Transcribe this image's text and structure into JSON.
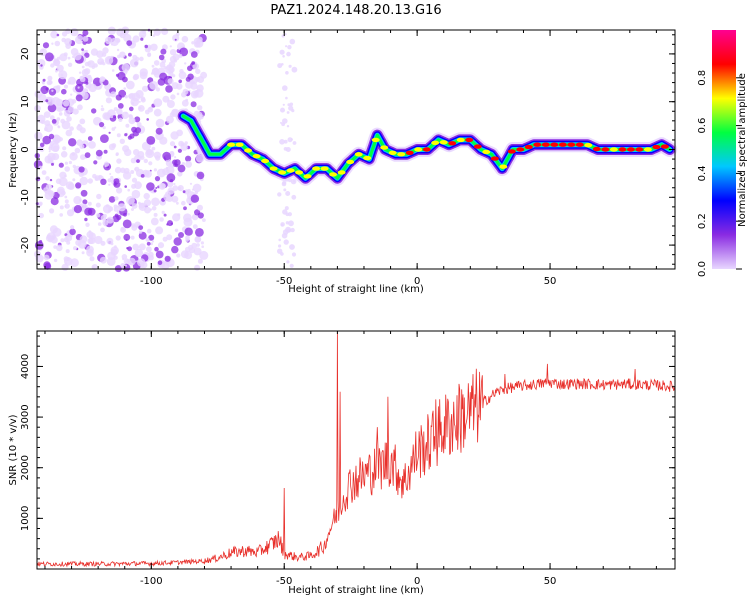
{
  "title": "PAZ1.2024.148.20.13.G16",
  "colors": {
    "noise": "#7b00e0",
    "snr_line": "#e8302b",
    "colormap": [
      "#e8d6ff",
      "#8a2be2",
      "#0000ff",
      "#00c8ff",
      "#00ff40",
      "#ffff00",
      "#ff0000",
      "#ff0090"
    ]
  },
  "chart_data": [
    {
      "type": "heatmap",
      "name": "spectrogram",
      "xlabel": "Height of straight line (km)",
      "ylabel": "Frequency (Hz)",
      "xlim": [
        -143,
        97
      ],
      "ylim": [
        -25,
        25
      ],
      "xticks": [
        -100,
        -50,
        0,
        50
      ],
      "xtick_labels": [
        "-100",
        "-50",
        "0",
        "50"
      ],
      "yticks": [
        -20,
        -10,
        0,
        10,
        20
      ],
      "ytick_labels": [
        "-20",
        "-10",
        "0",
        "10",
        "20"
      ],
      "ridge": {
        "x": [
          -88,
          -85,
          -82,
          -78,
          -74,
          -70,
          -66,
          -62,
          -58,
          -54,
          -50,
          -46,
          -42,
          -38,
          -34,
          -30,
          -26,
          -22,
          -18,
          -15,
          -12,
          -8,
          -4,
          0,
          4,
          8,
          12,
          16,
          20,
          24,
          28,
          32,
          36,
          40,
          44,
          48,
          52,
          56,
          60,
          64,
          68,
          72,
          76,
          80,
          84,
          88,
          92,
          95
        ],
        "y": [
          7,
          6,
          3,
          -1,
          -1,
          1,
          1,
          -1,
          -2,
          -4,
          -5,
          -4,
          -6,
          -4,
          -4,
          -6,
          -3,
          -1,
          -2,
          3,
          0,
          -1,
          -1,
          0,
          0,
          2,
          1,
          2,
          2,
          0,
          -1,
          -4,
          0,
          0,
          1,
          1,
          1,
          1,
          1,
          1,
          0,
          0,
          0,
          0,
          0,
          0,
          1,
          0
        ]
      },
      "colorbar": {
        "label": "Normalized spectral amplitude",
        "ticks": [
          0.0,
          0.2,
          0.4,
          0.6,
          0.8
        ],
        "tick_labels": [
          "0.0",
          "0.2",
          "0.4",
          "0.6",
          "0.8"
        ],
        "range": [
          0,
          1
        ]
      }
    },
    {
      "type": "line",
      "name": "snr",
      "xlabel": "Height of straight line (km)",
      "ylabel": "SNR (10 * v/v)",
      "xlim": [
        -143,
        97
      ],
      "ylim": [
        0,
        4700
      ],
      "xticks": [
        -100,
        -50,
        0,
        50
      ],
      "xtick_labels": [
        "-100",
        "-50",
        "0",
        "50"
      ],
      "yticks": [
        1000,
        2000,
        3000,
        4000
      ],
      "ytick_labels": [
        "1000",
        "2000",
        "3000",
        "4000"
      ],
      "envelope": {
        "x": [
          -143,
          -120,
          -100,
          -90,
          -80,
          -75,
          -70,
          -65,
          -60,
          -55,
          -52,
          -50,
          -45,
          -40,
          -35,
          -32,
          -30,
          -28,
          -25,
          -20,
          -15,
          -10,
          -5,
          0,
          5,
          10,
          15,
          20,
          25,
          30,
          35,
          40,
          45,
          50,
          55,
          60,
          70,
          80,
          90,
          97
        ],
        "y": [
          100,
          100,
          110,
          130,
          160,
          220,
          320,
          360,
          330,
          480,
          600,
          300,
          230,
          260,
          450,
          900,
          1100,
          1400,
          1700,
          1850,
          2000,
          2150,
          1700,
          2300,
          2500,
          2800,
          2950,
          3100,
          3300,
          3500,
          3580,
          3620,
          3650,
          3680,
          3650,
          3660,
          3640,
          3650,
          3630,
          3600
        ]
      },
      "spikes": [
        {
          "x": -50,
          "y": 1600
        },
        {
          "x": -30,
          "y": 4700
        },
        {
          "x": -29,
          "y": 3500
        },
        {
          "x": -15,
          "y": 2800
        },
        {
          "x": -11,
          "y": 3400
        },
        {
          "x": -8,
          "y": 2000
        },
        {
          "x": 7,
          "y": 3350
        },
        {
          "x": 16,
          "y": 3550
        },
        {
          "x": 33,
          "y": 3850
        },
        {
          "x": 49,
          "y": 4050
        },
        {
          "x": 82,
          "y": 3950
        }
      ]
    }
  ]
}
